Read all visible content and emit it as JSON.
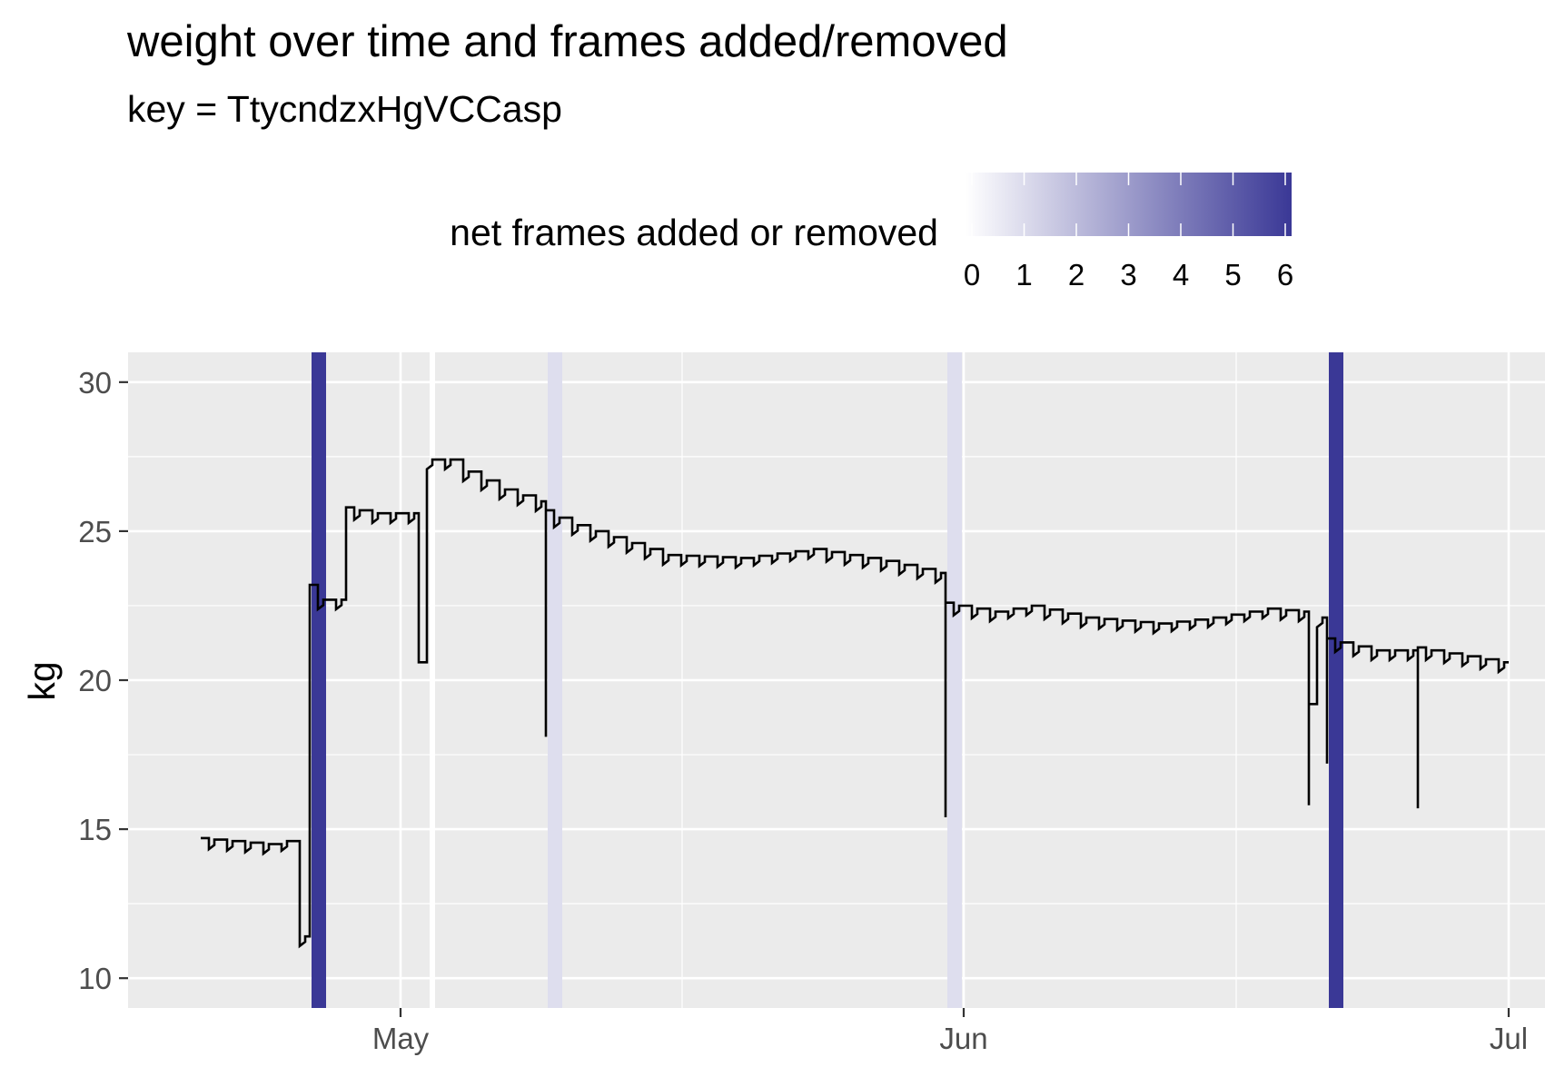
{
  "chart_data": {
    "type": "line",
    "title": "weight over time and frames added/removed",
    "subtitle": "key = TtycndzxHgVCCasp",
    "xlabel": "",
    "ylabel": "kg",
    "x_domain": [
      "2024-04-16",
      "2024-07-03"
    ],
    "ylim": [
      9,
      31
    ],
    "x_ticks": [
      {
        "date": "2024-05-01",
        "label": "May"
      },
      {
        "date": "2024-06-01",
        "label": "Jun"
      },
      {
        "date": "2024-07-01",
        "label": "Jul"
      }
    ],
    "y_ticks": [
      10,
      15,
      20,
      25,
      30
    ],
    "grid": true,
    "legend": {
      "title": "net frames added or removed",
      "position": "top",
      "ticks": [
        "0",
        "1",
        "2",
        "3",
        "4",
        "5",
        "6"
      ],
      "low_color": "#ffffff",
      "high_color": "#3a3896"
    },
    "bands": [
      {
        "date": "2024-04-26",
        "value": 6
      },
      {
        "date": "2024-05-09",
        "value": 1
      },
      {
        "date": "2024-05-31",
        "value": 1
      },
      {
        "date": "2024-06-21",
        "value": 6
      }
    ],
    "gaps": [
      "2024-05-03"
    ],
    "series": [
      {
        "values": [
          [
            "2024-04-20",
            14.7
          ],
          [
            "2024-04-22",
            14.6
          ],
          [
            "2024-04-24",
            14.5
          ],
          [
            "2024-04-25",
            14.6
          ],
          [
            "2024-04-26",
            11.4
          ],
          [
            "2024-04-26",
            23.2
          ],
          [
            "2024-04-27",
            22.7
          ],
          [
            "2024-04-28",
            22.7
          ],
          [
            "2024-04-28",
            25.8
          ],
          [
            "2024-04-30",
            25.6
          ],
          [
            "2024-05-02",
            25.6
          ],
          [
            "2024-05-02",
            20.6
          ],
          [
            "2024-05-03",
            27.4
          ],
          [
            "2024-05-04",
            27.4
          ],
          [
            "2024-05-05",
            27.0
          ],
          [
            "2024-05-07",
            26.4
          ],
          [
            "2024-05-09",
            26.0
          ],
          [
            "2024-05-09",
            18.1
          ],
          [
            "2024-05-09",
            25.7
          ],
          [
            "2024-05-11",
            25.2
          ],
          [
            "2024-05-14",
            24.6
          ],
          [
            "2024-05-16",
            24.2
          ],
          [
            "2024-05-20",
            24.1
          ],
          [
            "2024-05-24",
            24.4
          ],
          [
            "2024-05-28",
            24.0
          ],
          [
            "2024-05-31",
            23.6
          ],
          [
            "2024-05-31",
            15.4
          ],
          [
            "2024-05-31",
            22.6
          ],
          [
            "2024-06-03",
            22.3
          ],
          [
            "2024-06-05",
            22.5
          ],
          [
            "2024-06-08",
            22.1
          ],
          [
            "2024-06-12",
            21.9
          ],
          [
            "2024-06-15",
            22.1
          ],
          [
            "2024-06-18",
            22.4
          ],
          [
            "2024-06-20",
            22.3
          ],
          [
            "2024-06-20",
            15.8
          ],
          [
            "2024-06-20",
            19.2
          ],
          [
            "2024-06-21",
            22.1
          ],
          [
            "2024-06-21",
            17.2
          ],
          [
            "2024-06-21",
            21.4
          ],
          [
            "2024-06-24",
            21.0
          ],
          [
            "2024-06-26",
            21.0
          ],
          [
            "2024-06-26",
            15.7
          ],
          [
            "2024-06-26",
            21.1
          ],
          [
            "2024-06-29",
            20.8
          ],
          [
            "2024-07-01",
            20.6
          ]
        ]
      }
    ]
  }
}
